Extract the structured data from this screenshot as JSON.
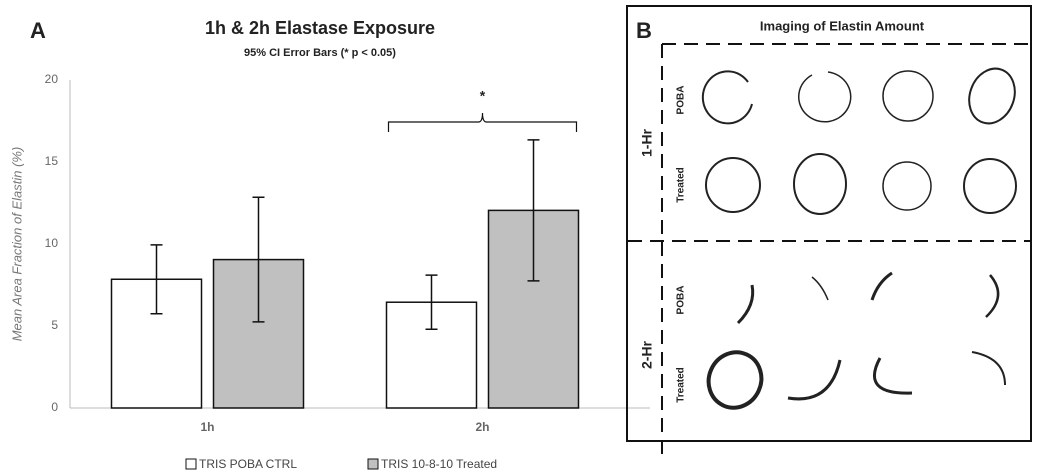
{
  "chart_data": {
    "type": "bar",
    "panel_label": "A",
    "title": "1h & 2h Elastase Exposure",
    "subtitle": "95% CI Error Bars (*  p < 0.05)",
    "ylabel": "Mean Area Fraction of Elastin (%)",
    "categories": [
      "1h",
      "2h"
    ],
    "series": [
      {
        "name": "TRIS POBA CTRL",
        "color": "#ffffff",
        "values": [
          7.85,
          6.45
        ],
        "errors": [
          2.1,
          1.65
        ]
      },
      {
        "name": "TRIS 10-8-10 Treated",
        "color": "#c0c0c0",
        "values": [
          9.05,
          12.05
        ],
        "errors": [
          3.8,
          4.3
        ]
      }
    ],
    "annotation": "*",
    "ylim": [
      0,
      20
    ],
    "yticks": [
      0,
      5,
      10,
      15,
      20
    ],
    "grid": false
  },
  "panel_b": {
    "panel_label": "B",
    "title": "Imaging of Elastin Amount",
    "groups": [
      {
        "label": "1-Hr",
        "rows": [
          "POBA",
          "Treated"
        ]
      },
      {
        "label": "2-Hr",
        "rows": [
          "POBA",
          "Treated"
        ]
      }
    ]
  }
}
